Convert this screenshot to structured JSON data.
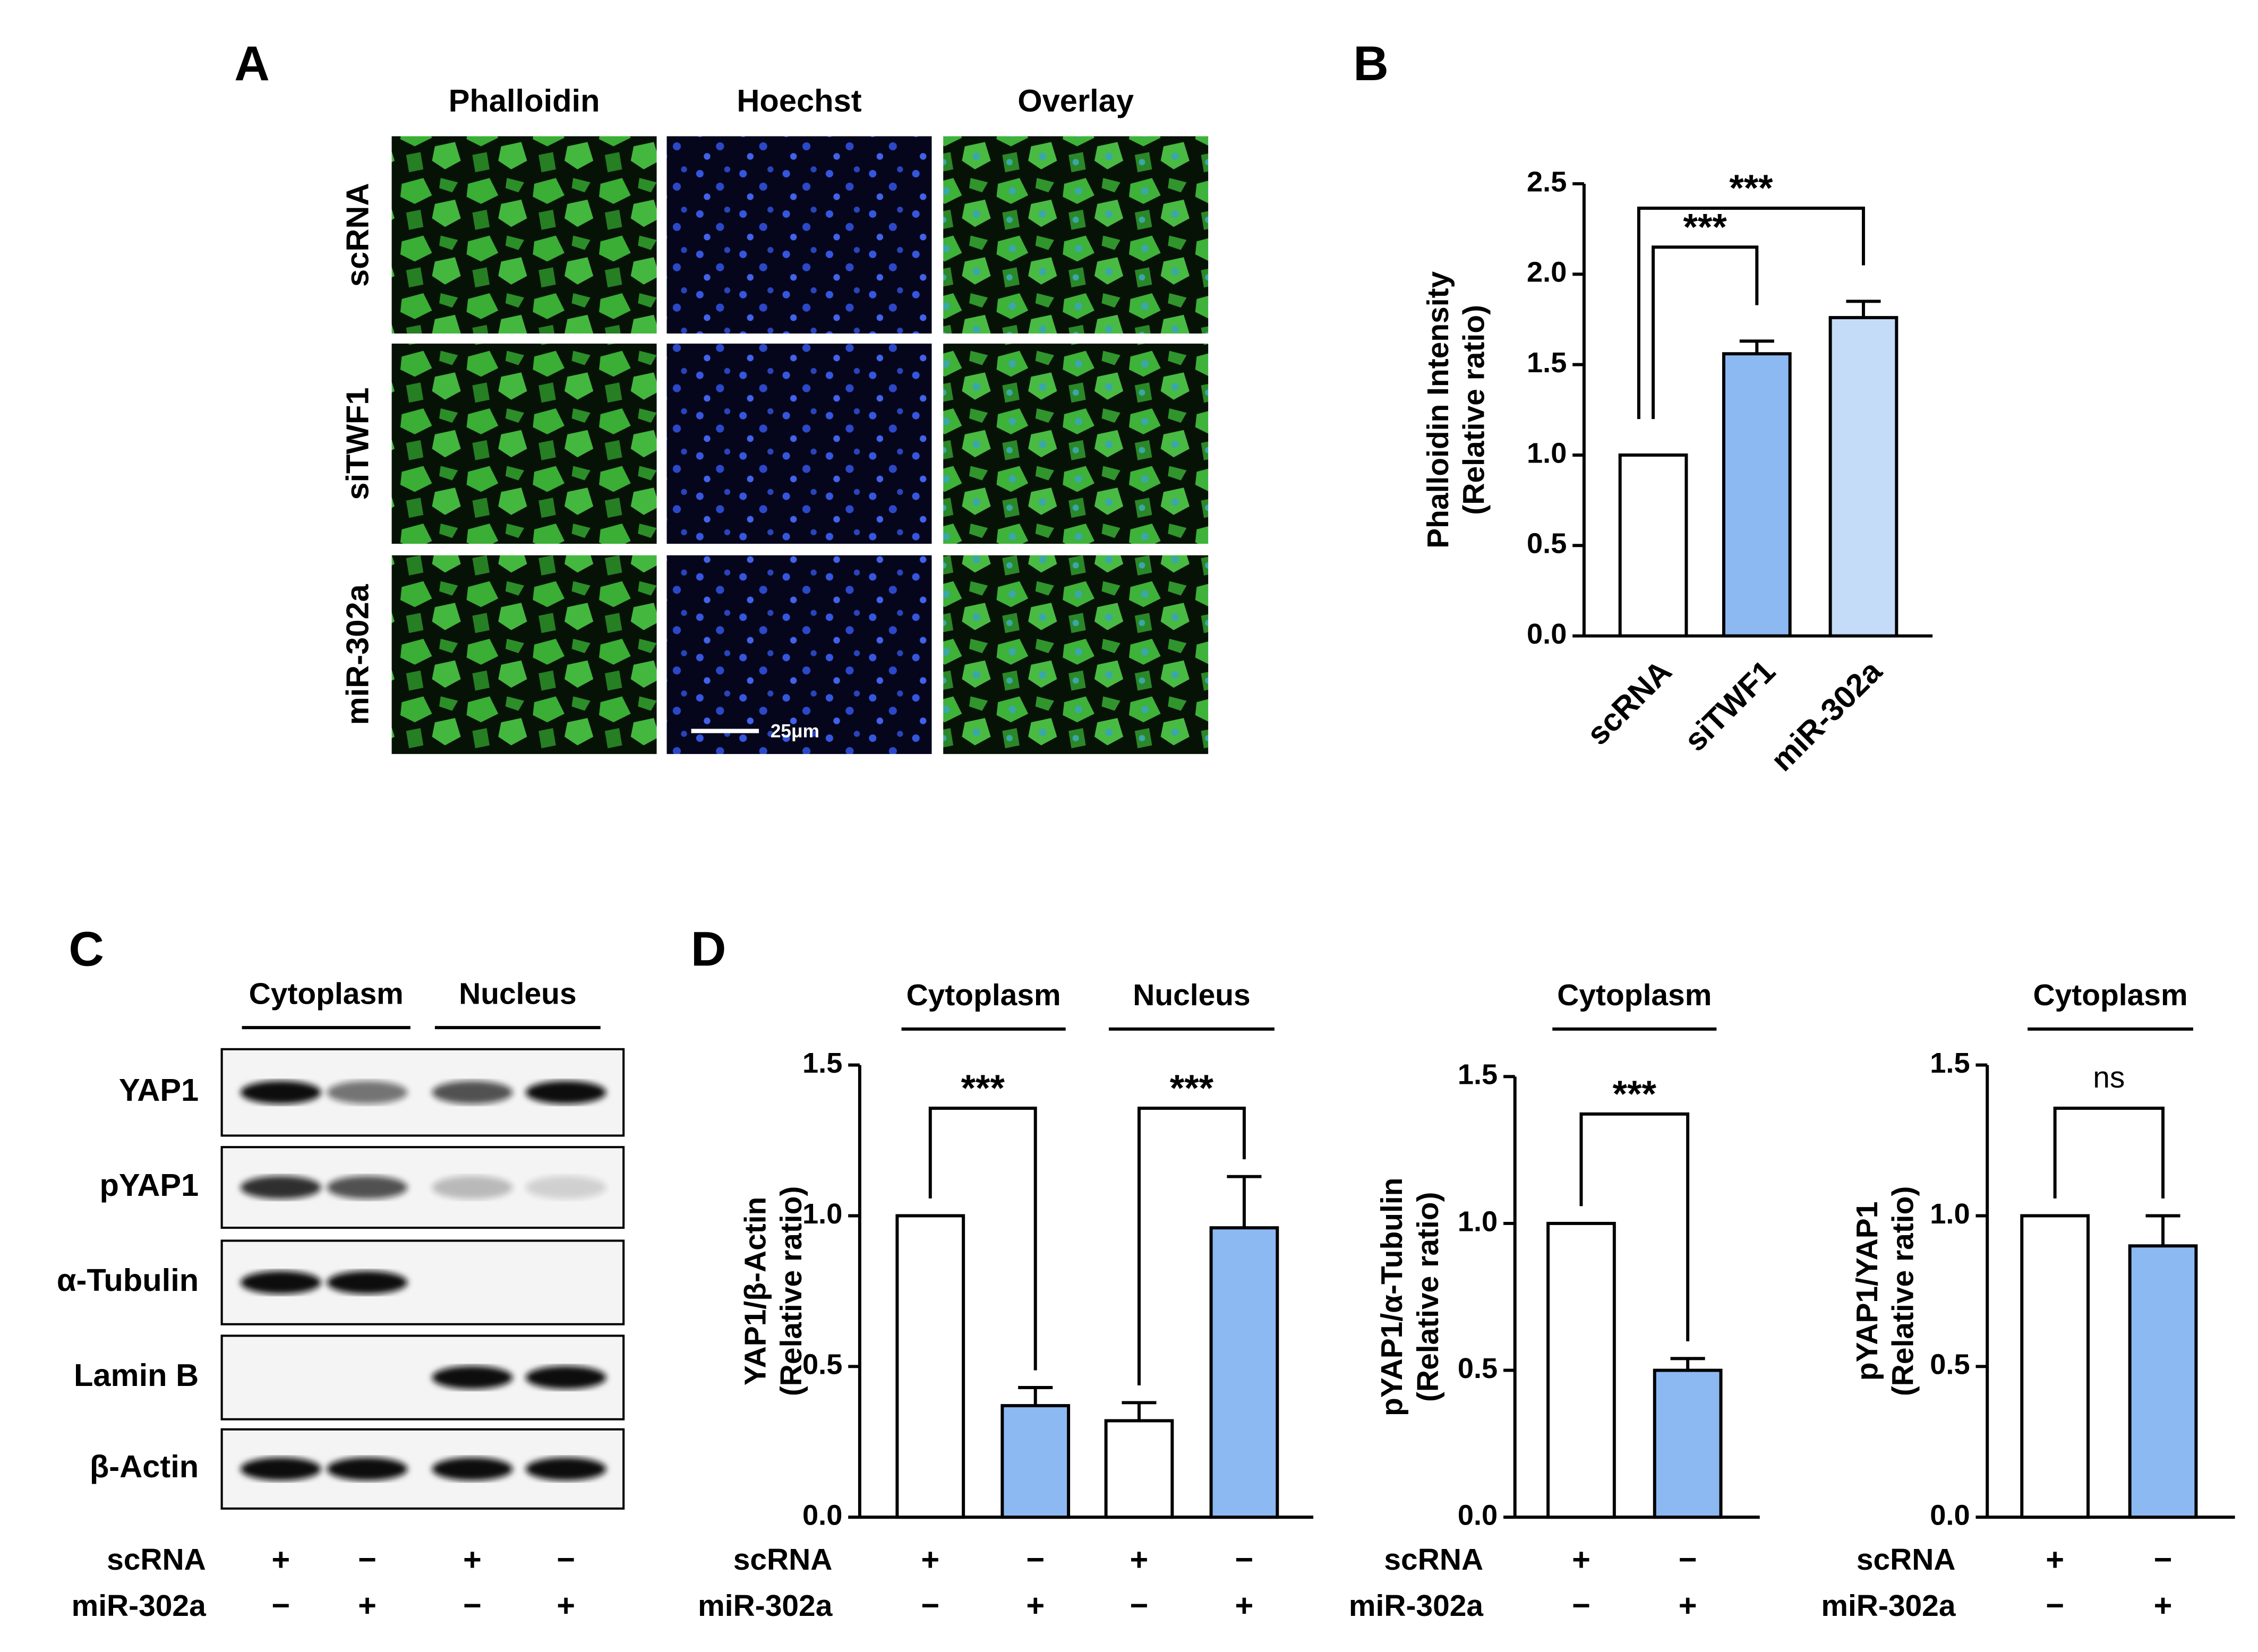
{
  "panel_labels": [
    "A",
    "B",
    "C",
    "D"
  ],
  "microscopy": {
    "columns": [
      "Phalloidin",
      "Hoechst",
      "Overlay"
    ],
    "rows": [
      "scRNA",
      "siTWF1",
      "miR-302a"
    ],
    "scale_bar": "25μm"
  },
  "western_blot": {
    "groups": [
      "Cytoplasm",
      "Nucleus"
    ],
    "proteins": [
      "YAP1",
      "pYAP1",
      "α-Tubulin",
      "Lamin B",
      "β-Actin"
    ],
    "conditions": [
      {
        "label": "scRNA",
        "signs": [
          "+",
          "−",
          "+",
          "−"
        ]
      },
      {
        "label": "miR-302a",
        "signs": [
          "−",
          "+",
          "−",
          "+"
        ]
      }
    ]
  },
  "chart_data": [
    {
      "type": "bar",
      "ylabel": [
        "Phalloidin Intensity",
        "(Relative ratio)"
      ],
      "categories": [
        "scRNA",
        "siTWF1",
        "miR-302a"
      ],
      "values": [
        1.0,
        1.56,
        1.76
      ],
      "errors": [
        null,
        0.07,
        0.09
      ],
      "colors": [
        "#ffffff",
        "#8cb9f2",
        "#c5dcf8"
      ],
      "ylim": [
        0,
        2.5
      ],
      "yticks": [
        {
          "value": 0,
          "label": "0.0"
        },
        {
          "value": 0.5,
          "label": "0.5"
        },
        {
          "value": 1,
          "label": "1.0"
        },
        {
          "value": 1.5,
          "label": "1.5"
        },
        {
          "value": 2,
          "label": "2.0"
        },
        {
          "value": 2.5,
          "label": "2.5"
        }
      ],
      "significance": [
        {
          "pair": [
            0,
            1
          ],
          "label": "***"
        },
        {
          "pair": [
            0,
            2
          ],
          "label": "***"
        }
      ]
    },
    {
      "type": "bar",
      "ylabel": [
        "YAP1/β-Actin",
        "(Relative ratio)"
      ],
      "groups": [
        {
          "label": "Cytoplasm",
          "bars": [
            0,
            1
          ]
        },
        {
          "label": "Nucleus",
          "bars": [
            2,
            3
          ]
        }
      ],
      "values": [
        1.0,
        0.37,
        0.32,
        0.96
      ],
      "errors": [
        null,
        0.06,
        0.06,
        0.17
      ],
      "colors": [
        "#ffffff",
        "#8cb9f2",
        "#ffffff",
        "#8cb9f2"
      ],
      "ylim": [
        0,
        1.5
      ],
      "yticks": [
        {
          "value": 0,
          "label": "0.0"
        },
        {
          "value": 0.5,
          "label": "0.5"
        },
        {
          "value": 1,
          "label": "1.0"
        },
        {
          "value": 1.5,
          "label": "1.5"
        }
      ],
      "significance": [
        {
          "pair": [
            0,
            1
          ],
          "label": "***"
        },
        {
          "pair": [
            2,
            3
          ],
          "label": "***"
        }
      ],
      "conditions": [
        {
          "label": "scRNA",
          "signs": [
            "+",
            "−",
            "+",
            "−"
          ]
        },
        {
          "label": "miR-302a",
          "signs": [
            "−",
            "+",
            "−",
            "+"
          ]
        }
      ]
    },
    {
      "type": "bar",
      "ylabel": [
        "pYAP1/α-Tubulin",
        "(Relative ratio)"
      ],
      "groups": [
        {
          "label": "Cytoplasm",
          "bars": [
            0,
            1
          ]
        }
      ],
      "values": [
        1.0,
        0.5
      ],
      "errors": [
        null,
        0.04
      ],
      "colors": [
        "#ffffff",
        "#8cb9f2"
      ],
      "ylim": [
        0,
        1.5
      ],
      "yticks": [
        {
          "value": 0,
          "label": "0.0"
        },
        {
          "value": 0.5,
          "label": "0.5"
        },
        {
          "value": 1,
          "label": "1.0"
        },
        {
          "value": 1.5,
          "label": "1.5"
        }
      ],
      "significance": [
        {
          "pair": [
            0,
            1
          ],
          "label": "***"
        }
      ],
      "conditions": [
        {
          "label": "scRNA",
          "signs": [
            "+",
            "−"
          ]
        },
        {
          "label": "miR-302a",
          "signs": [
            "−",
            "+"
          ]
        }
      ]
    },
    {
      "type": "bar",
      "ylabel": [
        "pYAP1/YAP1",
        "(Relative ratio)"
      ],
      "groups": [
        {
          "label": "Cytoplasm",
          "bars": [
            0,
            1
          ]
        }
      ],
      "values": [
        1.0,
        0.9
      ],
      "errors": [
        null,
        0.1
      ],
      "colors": [
        "#ffffff",
        "#8cb9f2"
      ],
      "ylim": [
        0,
        1.5
      ],
      "yticks": [
        {
          "value": 0,
          "label": "0.0"
        },
        {
          "value": 0.5,
          "label": "0.5"
        },
        {
          "value": 1,
          "label": "1.0"
        },
        {
          "value": 1.5,
          "label": "1.5"
        }
      ],
      "significance": [
        {
          "pair": [
            0,
            1
          ],
          "label": "ns"
        }
      ],
      "conditions": [
        {
          "label": "scRNA",
          "signs": [
            "+",
            "−"
          ]
        },
        {
          "label": "miR-302a",
          "signs": [
            "−",
            "+"
          ]
        }
      ]
    }
  ]
}
